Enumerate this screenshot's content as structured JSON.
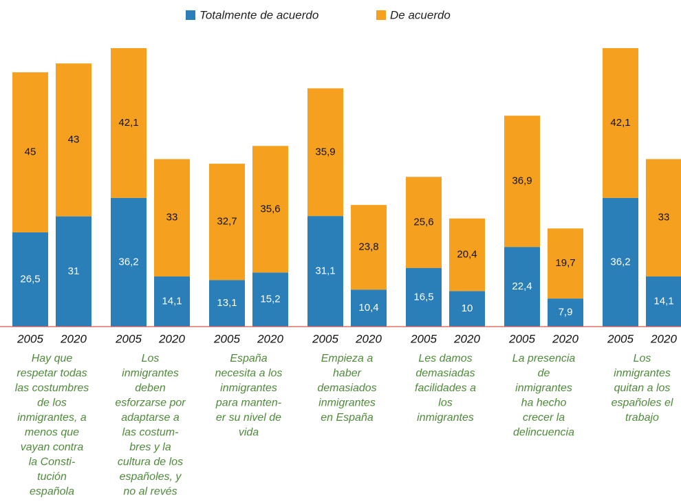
{
  "chart_data": {
    "type": "bar",
    "stacked": true,
    "categories": [
      "Hay que\nrespetar todas\nlas costumbres\nde los\ninmigrantes, a\nmenos que\nvayan contra\nla Consti-\ntución\nespañola",
      "Los\ninmigrantes\ndeben\nesforzarse por\nadaptarse a\nlas costum-\nbres y la\ncultura de los\nespañoles, y\nno al revés",
      "España\nnecesita a los\ninmigrantes\npara manten-\ner su nivel de\nvida",
      "Empieza a\nhaber\ndemasiados\ninmigrantes\nen España",
      "Les damos\ndemasiadas\nfacilidades a\nlos\ninmigrantes",
      "La presencia\nde\ninmigrantes\nha hecho\ncrecer la\ndelincuencia",
      "Los\ninmigrantes\nquitan a los\nespañoles el\ntrabajo"
    ],
    "years": [
      "2005",
      "2020"
    ],
    "series": [
      {
        "name": "Totalmente de acuerdo",
        "color": "#2a7fb8",
        "values": [
          [
            26.5,
            31
          ],
          [
            36.2,
            14.1
          ],
          [
            13.1,
            15.2
          ],
          [
            31.1,
            10.4
          ],
          [
            16.5,
            10
          ],
          [
            22.4,
            7.9
          ],
          [
            36.2,
            14.1
          ]
        ],
        "value_labels": [
          [
            "26,5",
            "31"
          ],
          [
            "36,2",
            "14,1"
          ],
          [
            "13,1",
            "15,2"
          ],
          [
            "31,1",
            "10,4"
          ],
          [
            "16,5",
            "10"
          ],
          [
            "22,4",
            "7,9"
          ],
          [
            "36,2",
            "14,1"
          ]
        ]
      },
      {
        "name": "De acuerdo",
        "color": "#f5a01f",
        "values": [
          [
            45,
            43
          ],
          [
            42.1,
            33
          ],
          [
            32.7,
            35.6
          ],
          [
            35.9,
            23.8
          ],
          [
            25.6,
            20.4
          ],
          [
            36.9,
            19.7
          ],
          [
            42.1,
            33
          ]
        ],
        "value_labels": [
          [
            "45",
            "43"
          ],
          [
            "42,1",
            "33"
          ],
          [
            "32,7",
            "35,6"
          ],
          [
            "35,9",
            "23,8"
          ],
          [
            "25,6",
            "20,4"
          ],
          [
            "36,9",
            "19,7"
          ],
          [
            "42,1",
            "33"
          ]
        ]
      }
    ],
    "legend": "top"
  }
}
